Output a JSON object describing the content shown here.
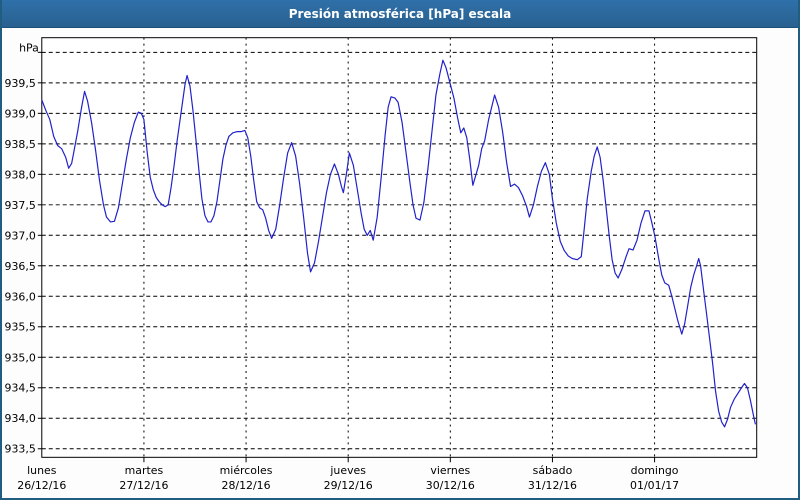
{
  "window": {
    "title": "Presión atmosférica [hPa] escala"
  },
  "colors": {
    "titlebar_bg": "#2d6da4",
    "titlebar_text": "#ffffff",
    "window_border": "#215d80",
    "plot_bg": "#ffffff",
    "grid": "#000000",
    "series_line": "#2121cb"
  },
  "chart_data": {
    "type": "line",
    "title": "Presión atmosférica [hPa] escala",
    "ylabel": "hPa",
    "grid": {
      "horizontal_dash": "4 3",
      "vertical_dash": "2 4"
    },
    "legend": "none",
    "y_axis": {
      "unit_label": "hPa",
      "min": 933.36,
      "max": 940.24,
      "tick_step": 0.5,
      "ticks": [
        {
          "value": 933.5,
          "label": "933,5"
        },
        {
          "value": 934.0,
          "label": "934,0"
        },
        {
          "value": 934.5,
          "label": "934,5"
        },
        {
          "value": 935.0,
          "label": "935,0"
        },
        {
          "value": 935.5,
          "label": "935,5"
        },
        {
          "value": 936.0,
          "label": "936,0"
        },
        {
          "value": 936.5,
          "label": "936,5"
        },
        {
          "value": 937.0,
          "label": "937,0"
        },
        {
          "value": 937.5,
          "label": "937,5"
        },
        {
          "value": 938.0,
          "label": "938,0"
        },
        {
          "value": 938.5,
          "label": "938,5"
        },
        {
          "value": 939.0,
          "label": "939,0"
        },
        {
          "value": 939.5,
          "label": "939,5"
        },
        {
          "value": 940.0,
          "label": ""
        }
      ]
    },
    "x_axis": {
      "total_days": 7,
      "days": [
        {
          "weekday": "lunes",
          "date": "26/12/16"
        },
        {
          "weekday": "martes",
          "date": "27/12/16"
        },
        {
          "weekday": "miércoles",
          "date": "28/12/16"
        },
        {
          "weekday": "jueves",
          "date": "29/12/16"
        },
        {
          "weekday": "viernes",
          "date": "30/12/16"
        },
        {
          "weekday": "sábado",
          "date": "31/12/16"
        },
        {
          "weekday": "domingo",
          "date": "01/01/17"
        }
      ]
    },
    "series": [
      {
        "name": "presión atmosférica",
        "unit": "hPa",
        "color": "#2121cb",
        "points": [
          [
            0.0,
            939.22
          ],
          [
            0.039,
            939.05
          ],
          [
            0.078,
            938.9
          ],
          [
            0.117,
            938.62
          ],
          [
            0.156,
            938.47
          ],
          [
            0.195,
            938.42
          ],
          [
            0.234,
            938.28
          ],
          [
            0.263,
            938.1
          ],
          [
            0.292,
            938.18
          ],
          [
            0.312,
            938.35
          ],
          [
            0.351,
            938.7
          ],
          [
            0.39,
            939.1
          ],
          [
            0.419,
            939.36
          ],
          [
            0.448,
            939.2
          ],
          [
            0.487,
            938.85
          ],
          [
            0.526,
            938.4
          ],
          [
            0.565,
            937.9
          ],
          [
            0.604,
            937.5
          ],
          [
            0.633,
            937.3
          ],
          [
            0.672,
            937.22
          ],
          [
            0.711,
            937.23
          ],
          [
            0.75,
            937.45
          ],
          [
            0.789,
            937.85
          ],
          [
            0.828,
            938.25
          ],
          [
            0.867,
            938.6
          ],
          [
            0.906,
            938.85
          ],
          [
            0.945,
            939.02
          ],
          [
            0.974,
            939.0
          ],
          [
            1.0,
            938.9
          ],
          [
            1.033,
            938.35
          ],
          [
            1.062,
            937.95
          ],
          [
            1.091,
            937.75
          ],
          [
            1.12,
            937.62
          ],
          [
            1.15,
            937.55
          ],
          [
            1.179,
            937.5
          ],
          [
            1.208,
            937.47
          ],
          [
            1.237,
            937.5
          ],
          [
            1.266,
            937.78
          ],
          [
            1.296,
            938.15
          ],
          [
            1.325,
            938.55
          ],
          [
            1.354,
            938.9
          ],
          [
            1.383,
            939.25
          ],
          [
            1.403,
            939.48
          ],
          [
            1.422,
            939.62
          ],
          [
            1.451,
            939.45
          ],
          [
            1.48,
            939.05
          ],
          [
            1.51,
            938.55
          ],
          [
            1.539,
            938.05
          ],
          [
            1.568,
            937.6
          ],
          [
            1.598,
            937.32
          ],
          [
            1.627,
            937.22
          ],
          [
            1.656,
            937.22
          ],
          [
            1.685,
            937.32
          ],
          [
            1.715,
            937.55
          ],
          [
            1.744,
            937.9
          ],
          [
            1.773,
            938.25
          ],
          [
            1.803,
            938.48
          ],
          [
            1.832,
            938.62
          ],
          [
            1.871,
            938.68
          ],
          [
            1.91,
            938.7
          ],
          [
            1.949,
            938.7
          ],
          [
            1.988,
            938.72
          ],
          [
            2.017,
            938.6
          ],
          [
            2.046,
            938.3
          ],
          [
            2.075,
            937.9
          ],
          [
            2.104,
            937.55
          ],
          [
            2.134,
            937.45
          ],
          [
            2.163,
            937.42
          ],
          [
            2.192,
            937.28
          ],
          [
            2.221,
            937.08
          ],
          [
            2.251,
            936.95
          ],
          [
            2.29,
            937.1
          ],
          [
            2.329,
            937.5
          ],
          [
            2.368,
            937.95
          ],
          [
            2.407,
            938.35
          ],
          [
            2.446,
            938.52
          ],
          [
            2.485,
            938.3
          ],
          [
            2.524,
            937.85
          ],
          [
            2.563,
            937.3
          ],
          [
            2.602,
            936.7
          ],
          [
            2.631,
            936.4
          ],
          [
            2.67,
            936.55
          ],
          [
            2.709,
            936.9
          ],
          [
            2.748,
            937.3
          ],
          [
            2.787,
            937.7
          ],
          [
            2.826,
            938.0
          ],
          [
            2.865,
            938.17
          ],
          [
            2.904,
            938.0
          ],
          [
            2.933,
            937.8
          ],
          [
            2.953,
            937.7
          ],
          [
            2.982,
            938.0
          ],
          [
            3.011,
            938.35
          ],
          [
            3.05,
            938.15
          ],
          [
            3.089,
            937.75
          ],
          [
            3.128,
            937.35
          ],
          [
            3.157,
            937.1
          ],
          [
            3.187,
            937.0
          ],
          [
            3.216,
            937.08
          ],
          [
            3.245,
            936.92
          ],
          [
            3.284,
            937.3
          ],
          [
            3.323,
            937.95
          ],
          [
            3.362,
            938.65
          ],
          [
            3.391,
            939.1
          ],
          [
            3.42,
            939.27
          ],
          [
            3.459,
            939.25
          ],
          [
            3.489,
            939.18
          ],
          [
            3.528,
            938.85
          ],
          [
            3.567,
            938.35
          ],
          [
            3.606,
            937.85
          ],
          [
            3.635,
            937.5
          ],
          [
            3.664,
            937.28
          ],
          [
            3.703,
            937.25
          ],
          [
            3.742,
            937.55
          ],
          [
            3.781,
            938.1
          ],
          [
            3.82,
            938.7
          ],
          [
            3.859,
            939.3
          ],
          [
            3.898,
            939.65
          ],
          [
            3.927,
            939.87
          ],
          [
            3.957,
            939.75
          ],
          [
            3.996,
            939.5
          ],
          [
            4.035,
            939.25
          ],
          [
            4.074,
            938.9
          ],
          [
            4.103,
            938.68
          ],
          [
            4.132,
            938.76
          ],
          [
            4.161,
            938.6
          ],
          [
            4.19,
            938.25
          ],
          [
            4.22,
            937.82
          ],
          [
            4.249,
            937.98
          ],
          [
            4.278,
            938.15
          ],
          [
            4.307,
            938.42
          ],
          [
            4.336,
            938.55
          ],
          [
            4.375,
            938.9
          ],
          [
            4.405,
            939.1
          ],
          [
            4.434,
            939.3
          ],
          [
            4.473,
            939.1
          ],
          [
            4.512,
            938.7
          ],
          [
            4.551,
            938.2
          ],
          [
            4.59,
            937.8
          ],
          [
            4.629,
            937.84
          ],
          [
            4.668,
            937.78
          ],
          [
            4.707,
            937.65
          ],
          [
            4.746,
            937.48
          ],
          [
            4.775,
            937.3
          ],
          [
            4.814,
            937.5
          ],
          [
            4.853,
            937.8
          ],
          [
            4.892,
            938.05
          ],
          [
            4.931,
            938.19
          ],
          [
            4.97,
            938.0
          ],
          [
            5.0,
            937.6
          ],
          [
            5.038,
            937.2
          ],
          [
            5.077,
            936.9
          ],
          [
            5.116,
            936.75
          ],
          [
            5.155,
            936.66
          ],
          [
            5.194,
            936.62
          ],
          [
            5.243,
            936.6
          ],
          [
            5.282,
            936.65
          ],
          [
            5.311,
            937.1
          ],
          [
            5.341,
            937.6
          ],
          [
            5.38,
            938.05
          ],
          [
            5.409,
            938.3
          ],
          [
            5.438,
            938.45
          ],
          [
            5.467,
            938.28
          ],
          [
            5.497,
            937.9
          ],
          [
            5.526,
            937.45
          ],
          [
            5.555,
            937.0
          ],
          [
            5.584,
            936.6
          ],
          [
            5.614,
            936.38
          ],
          [
            5.643,
            936.3
          ],
          [
            5.682,
            936.45
          ],
          [
            5.721,
            936.65
          ],
          [
            5.75,
            936.78
          ],
          [
            5.789,
            936.76
          ],
          [
            5.828,
            936.92
          ],
          [
            5.867,
            937.2
          ],
          [
            5.906,
            937.4
          ],
          [
            5.945,
            937.4
          ],
          [
            5.974,
            937.2
          ],
          [
            6.003,
            936.98
          ],
          [
            6.042,
            936.6
          ],
          [
            6.071,
            936.35
          ],
          [
            6.1,
            936.22
          ],
          [
            6.139,
            936.18
          ],
          [
            6.169,
            936.0
          ],
          [
            6.198,
            935.8
          ],
          [
            6.227,
            935.6
          ],
          [
            6.266,
            935.38
          ],
          [
            6.295,
            935.55
          ],
          [
            6.325,
            935.85
          ],
          [
            6.354,
            936.15
          ],
          [
            6.383,
            936.35
          ],
          [
            6.412,
            936.5
          ],
          [
            6.432,
            936.62
          ],
          [
            6.451,
            936.5
          ],
          [
            6.48,
            936.1
          ],
          [
            6.51,
            935.7
          ],
          [
            6.539,
            935.3
          ],
          [
            6.568,
            934.9
          ],
          [
            6.597,
            934.45
          ],
          [
            6.627,
            934.12
          ],
          [
            6.656,
            933.94
          ],
          [
            6.685,
            933.86
          ],
          [
            6.714,
            933.98
          ],
          [
            6.744,
            934.18
          ],
          [
            6.782,
            934.32
          ],
          [
            6.821,
            934.42
          ],
          [
            6.851,
            934.5
          ],
          [
            6.88,
            934.57
          ],
          [
            6.909,
            934.5
          ],
          [
            6.938,
            934.3
          ],
          [
            6.968,
            934.05
          ],
          [
            6.987,
            933.9
          ]
        ]
      }
    ]
  }
}
